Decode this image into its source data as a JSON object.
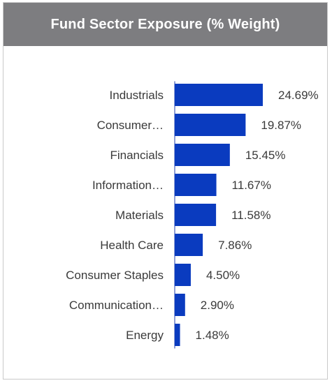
{
  "chart_data": {
    "type": "bar",
    "orientation": "horizontal",
    "title": "Fund Sector Exposure (% Weight)",
    "categories": [
      "Industrials",
      "Consumer…",
      "Financials",
      "Information…",
      "Materials",
      "Health Care",
      "Consumer Staples",
      "Communication…",
      "Energy"
    ],
    "values": [
      24.69,
      19.87,
      15.45,
      11.67,
      11.58,
      7.86,
      4.5,
      2.9,
      1.48
    ],
    "value_labels": [
      "24.69%",
      "19.87%",
      "15.45%",
      "11.67%",
      "11.58%",
      "7.86%",
      "4.50%",
      "2.90%",
      "1.48%"
    ],
    "xlim": [
      0,
      24.69
    ],
    "grid": false,
    "bar_color": "#0a3bbf",
    "header_color": "#7d7d80"
  }
}
